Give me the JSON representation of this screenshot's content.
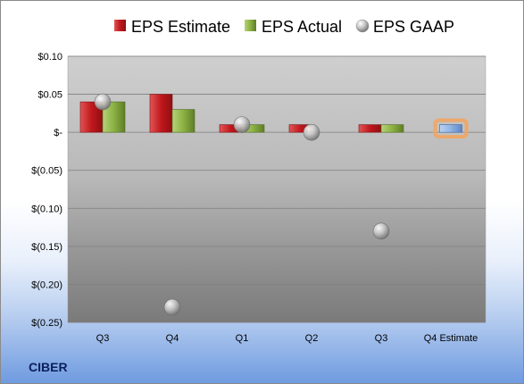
{
  "company": "CIBER",
  "colors": {
    "estimate": "#c0171c",
    "actual": "#8bb142",
    "gaap": "#b7b7b7",
    "q4_estimate_bar": "#8fb3e3",
    "q4_estimate_glow": "#f4a35b"
  },
  "chart_data": {
    "type": "bar",
    "title": "",
    "xlabel": "",
    "ylabel": "",
    "categories": [
      "Q3",
      "Q4",
      "Q1",
      "Q2",
      "Q3",
      "Q4 Estimate"
    ],
    "series": [
      {
        "name": "EPS Estimate",
        "kind": "bar",
        "values": [
          0.04,
          0.05,
          0.01,
          0.01,
          0.01,
          null
        ]
      },
      {
        "name": "EPS Actual",
        "kind": "bar",
        "values": [
          0.04,
          0.03,
          0.01,
          null,
          0.01,
          null
        ]
      },
      {
        "name": "EPS GAAP",
        "kind": "marker",
        "values": [
          0.04,
          -0.23,
          0.01,
          0.0,
          -0.13,
          null
        ]
      }
    ],
    "q4_estimate_value": 0.01,
    "ylim": [
      -0.25,
      0.1
    ],
    "yticks": [
      0.1,
      0.05,
      0.0,
      -0.05,
      -0.1,
      -0.15,
      -0.2,
      -0.25
    ],
    "ytick_labels": [
      "$0.10",
      "$0.05",
      "$-",
      "$(0.05)",
      "$(0.10)",
      "$(0.15)",
      "$(0.20)",
      "$(0.25)"
    ],
    "legend_position": "top",
    "grid": true
  }
}
